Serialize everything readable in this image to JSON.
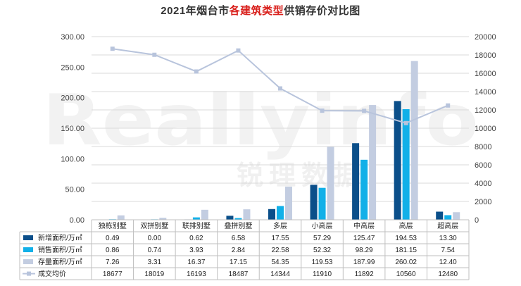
{
  "title": {
    "prefix": "2021年烟台市",
    "highlight": "各建筑类型",
    "suffix": "供销存价对比图"
  },
  "watermark": {
    "latin": "Reallyinfo",
    "cjk": "锐理数据"
  },
  "colors": {
    "new_area": "#0b4f8a",
    "sold_area": "#12b0e8",
    "stock_area": "#c3cde1",
    "avg_price": "#b8c4dc",
    "grid": "#d9d9d9"
  },
  "chart_data": {
    "type": "bar",
    "title": "2021年烟台市各建筑类型供销存价对比图",
    "categories": [
      "独栋别墅",
      "双拼别墅",
      "联排别墅",
      "叠拼别墅",
      "多层",
      "小高层",
      "中高层",
      "高层",
      "超高层"
    ],
    "left_axis": {
      "min": 0,
      "max": 300,
      "step": 50,
      "ticks": [
        "0.00",
        "50.00",
        "100.00",
        "150.00",
        "200.00",
        "250.00",
        "300.00"
      ]
    },
    "right_axis": {
      "min": 0,
      "max": 20000,
      "step": 2000,
      "ticks": [
        "0",
        "2000",
        "4000",
        "6000",
        "8000",
        "10000",
        "12000",
        "14000",
        "16000",
        "18000",
        "20000"
      ]
    },
    "grid": true,
    "legend": "table-below",
    "series": [
      {
        "name": "新增面积/万㎡",
        "kind": "bar",
        "axis": "left",
        "values": [
          0.49,
          0.0,
          0.62,
          6.58,
          17.55,
          57.29,
          125.47,
          194.53,
          13.3
        ],
        "labels": [
          "0.49",
          "0.00",
          "0.62",
          "6.58",
          "17.55",
          "57.29",
          "125.47",
          "194.53",
          "13.30"
        ]
      },
      {
        "name": "销售面积/万㎡",
        "kind": "bar",
        "axis": "left",
        "values": [
          0.86,
          0.74,
          3.93,
          2.84,
          22.58,
          52.32,
          98.29,
          181.15,
          7.54
        ],
        "labels": [
          "0.86",
          "0.74",
          "3.93",
          "2.84",
          "22.58",
          "52.32",
          "98.29",
          "181.15",
          "7.54"
        ]
      },
      {
        "name": "存量面积/万㎡",
        "kind": "bar",
        "axis": "left",
        "values": [
          7.26,
          3.31,
          16.37,
          17.15,
          54.35,
          119.53,
          187.99,
          260.02,
          12.4
        ],
        "labels": [
          "7.26",
          "3.31",
          "16.37",
          "17.15",
          "54.35",
          "119.53",
          "187.99",
          "260.02",
          "12.40"
        ]
      },
      {
        "name": "成交均价",
        "kind": "line",
        "axis": "right",
        "values": [
          18677,
          18019,
          16193,
          18487,
          14344,
          11910,
          11892,
          10560,
          12480
        ],
        "labels": [
          "18677",
          "18019",
          "16193",
          "18487",
          "14344",
          "11910",
          "11892",
          "10560",
          "12480"
        ]
      }
    ]
  }
}
